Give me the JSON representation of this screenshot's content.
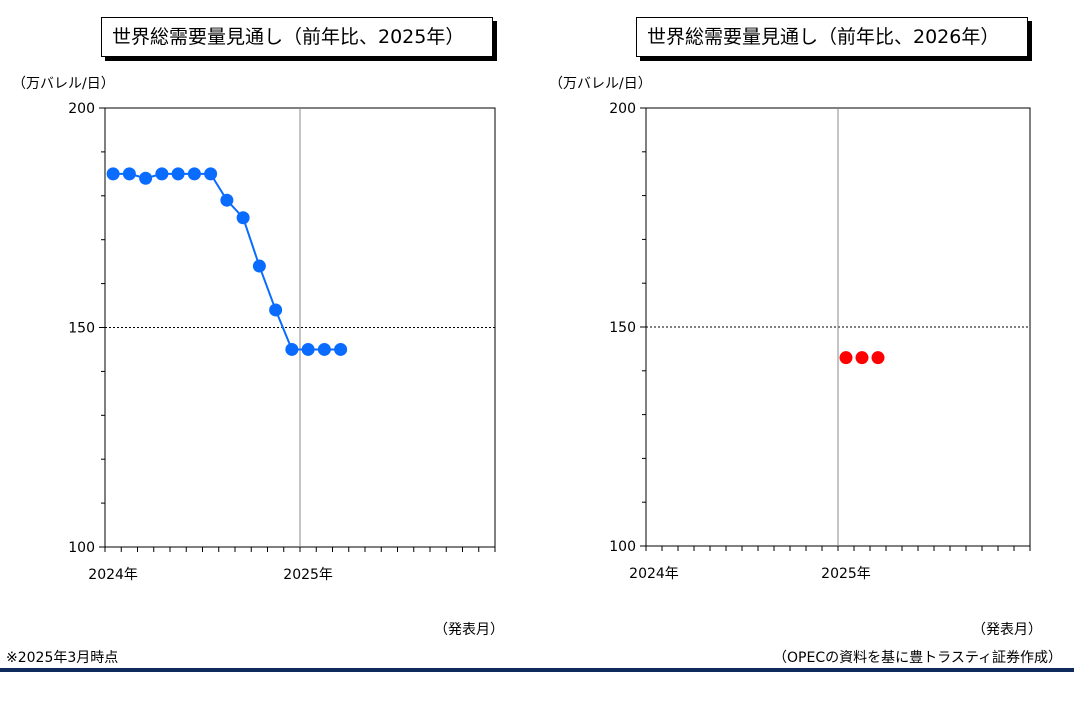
{
  "charts_header": {
    "left_title": "世界総需要量見通し（前年比、2025年）",
    "right_title": "世界総需要量見通し（前年比、2026年）",
    "unit_label": "（万バレル/日）",
    "x_axis_note": "（発表月）"
  },
  "footer": {
    "note": "※2025年3月時点",
    "source": "（OPECの資料を基に豊トラスティ証券作成）"
  },
  "colors": {
    "series_2025": "#0a6cff",
    "series_2026": "#ff0000",
    "frame": "#000000",
    "footer_rule": "#0f2a5c"
  },
  "chart_data": [
    {
      "type": "line",
      "title": "世界総需要量見通し（前年比、2025年）",
      "ylabel": "（万バレル/日）",
      "xlabel": "（発表月）",
      "ylim": [
        100,
        200
      ],
      "yticks": [
        100,
        150,
        200
      ],
      "x_tick_labels": [
        "2024年",
        "2025年"
      ],
      "x_range_months": 24,
      "grid": "vertical line at 2025年, dashed line at 150",
      "series": [
        {
          "values": [
            185,
            185,
            184,
            185,
            185,
            185,
            185,
            179,
            175,
            164,
            154,
            145,
            145,
            145,
            145
          ]
        }
      ]
    },
    {
      "type": "scatter",
      "title": "世界総需要量見通し（前年比、2026年）",
      "ylabel": "（万バレル/日）",
      "xlabel": "（発表月）",
      "ylim": [
        100,
        200
      ],
      "yticks": [
        100,
        150,
        200
      ],
      "x_tick_labels": [
        "2024年",
        "2025年"
      ],
      "x_range_months": 24,
      "grid": "vertical line at 2025年, dashed line at 150",
      "series": [
        {
          "start_month_index": 12,
          "values": [
            143,
            143,
            143
          ]
        }
      ]
    }
  ]
}
